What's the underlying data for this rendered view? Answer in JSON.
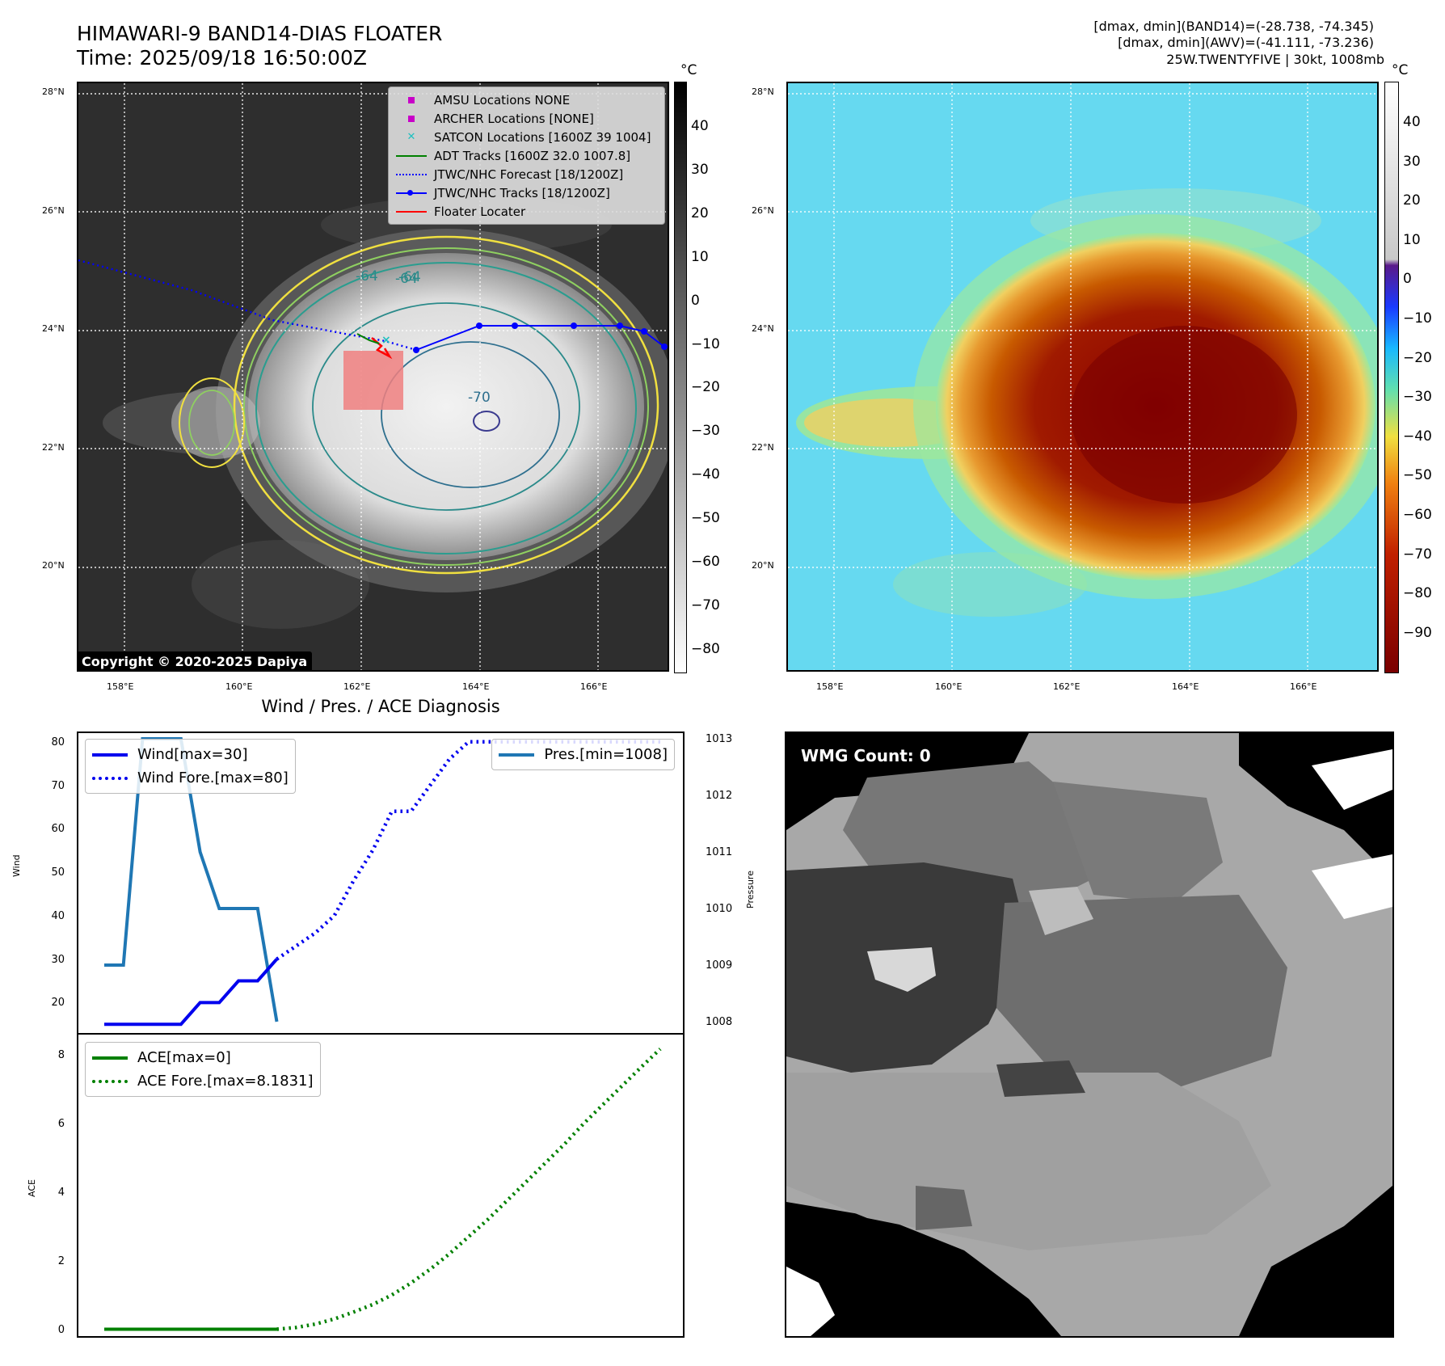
{
  "header": {
    "title_line1": "HIMAWARI-9 BAND14-DIAS FLOATER",
    "title_line2": "Time: 2025/09/18 16:50:00Z",
    "info_line1": "[dmax, dmin](BAND14)=(-28.738, -74.345)",
    "info_line2": "[dmax, dmin](AWV)=(-41.111, -73.236)",
    "info_line3": "25W.TWENTYFIVE | 30kt, 1008mb"
  },
  "map": {
    "lat_labels": [
      "28°N",
      "26°N",
      "24°N",
      "22°N",
      "20°N"
    ],
    "lon_labels": [
      "158°E",
      "160°E",
      "162°E",
      "164°E",
      "166°E"
    ],
    "copyright": "Copyright © 2020-2025 Dapiya",
    "contour_labels": [
      "-64",
      "-70",
      "-64",
      "-64"
    ],
    "legend": [
      {
        "label": "AMSU Locations NONE",
        "color": "#c800c8",
        "symbol": "square"
      },
      {
        "label": "ARCHER Locations [NONE]",
        "color": "#c800c8",
        "symbol": "square"
      },
      {
        "label": "SATCON Locations [1600Z 39 1004]",
        "color": "#20c0c0",
        "symbol": "x"
      },
      {
        "label": "ADT Tracks [1600Z 32.0 1007.8]",
        "color": "#008000",
        "symbol": "line"
      },
      {
        "label": "JTWC/NHC Forecast [18/1200Z]",
        "color": "#0000ff",
        "symbol": "dotted"
      },
      {
        "label": "JTWC/NHC Tracks [18/1200Z]",
        "color": "#0000ff",
        "symbol": "line-dot"
      },
      {
        "label": "Floater Locater",
        "color": "#ff0000",
        "symbol": "line"
      }
    ]
  },
  "colorbar_left": {
    "unit": "°C",
    "ticks": [
      "40",
      "30",
      "20",
      "10",
      "0",
      "−10",
      "−20",
      "−30",
      "−40",
      "−50",
      "−60",
      "−70",
      "−80"
    ]
  },
  "colorbar_right": {
    "unit": "°C",
    "ticks": [
      "40",
      "30",
      "20",
      "10",
      "0",
      "−10",
      "−20",
      "−30",
      "−40",
      "−50",
      "−60",
      "−70",
      "−80",
      "−90"
    ]
  },
  "wind_panel": {
    "title": "Wind / Pres. / ACE Diagnosis",
    "ylabel_left": "Wind",
    "ylabel_right": "Pressure",
    "wind_ticks": [
      "80",
      "70",
      "60",
      "50",
      "40",
      "30",
      "20"
    ],
    "pres_ticks": [
      "1013",
      "1012",
      "1011",
      "1010",
      "1009",
      "1008"
    ],
    "legend_wind": "Wind[max=30]",
    "legend_wind_fore": "Wind Fore.[max=80]",
    "legend_pres": "Pres.[min=1008]"
  },
  "ace_panel": {
    "ylabel": "ACE",
    "ticks": [
      "8",
      "6",
      "4",
      "2",
      "0"
    ],
    "legend_ace": "ACE[max=0]",
    "legend_ace_fore": "ACE Fore.[max=8.1831]"
  },
  "wmg_panel": {
    "label": "WMG Count: 0"
  },
  "colors": {
    "wind": "#0000ee",
    "pressure": "#1f77b4",
    "ace": "#008000",
    "track": "#0000ff",
    "floater_box": "#f08080"
  },
  "chart_data": [
    {
      "type": "line",
      "title": "Wind / Pres. / ACE Diagnosis",
      "ylabel": "Wind",
      "ylim": [
        13,
        82
      ],
      "series": [
        {
          "name": "Wind[max=30]",
          "style": "solid",
          "x": [
            0,
            1,
            2,
            3,
            4,
            5,
            6,
            7,
            8,
            9
          ],
          "values": [
            15,
            15,
            15,
            15,
            15,
            20,
            20,
            25,
            25,
            30
          ]
        },
        {
          "name": "Wind Fore.[max=80]",
          "style": "dotted",
          "x": [
            9,
            10,
            11,
            12,
            13,
            14,
            15,
            16,
            17,
            18,
            19,
            20,
            21,
            22,
            23,
            24,
            25,
            26,
            27,
            28,
            29
          ],
          "values": [
            30,
            33,
            36,
            40,
            48,
            55,
            64,
            64,
            70,
            76,
            80,
            80,
            80,
            80,
            80,
            80,
            80,
            80,
            80,
            80,
            80
          ]
        }
      ]
    },
    {
      "type": "line",
      "ylabel": "Pressure",
      "ylim": [
        1007.8,
        1013.1
      ],
      "series": [
        {
          "name": "Pres.[min=1008]",
          "style": "solid",
          "x": [
            0,
            1,
            2,
            3,
            4,
            5,
            6,
            7,
            8,
            9
          ],
          "values": [
            1009,
            1009,
            1013,
            1013,
            1013,
            1011,
            1010,
            1010,
            1010,
            1008
          ]
        }
      ]
    },
    {
      "type": "line",
      "ylabel": "ACE",
      "ylim": [
        -0.2,
        8.6
      ],
      "series": [
        {
          "name": "ACE[max=0]",
          "style": "solid",
          "x": [
            0,
            1,
            2,
            3,
            4,
            5,
            6,
            7,
            8,
            9
          ],
          "values": [
            0,
            0,
            0,
            0,
            0,
            0,
            0,
            0,
            0,
            0
          ]
        },
        {
          "name": "ACE Fore.[max=8.1831]",
          "style": "dotted",
          "x": [
            9,
            10,
            11,
            12,
            13,
            14,
            15,
            16,
            17,
            18,
            19,
            20,
            21,
            22,
            23,
            24,
            25,
            26,
            27,
            28,
            29
          ],
          "values": [
            0,
            0.05,
            0.15,
            0.3,
            0.5,
            0.72,
            1.0,
            1.35,
            1.75,
            2.2,
            2.7,
            3.2,
            3.75,
            4.3,
            4.85,
            5.4,
            6.0,
            6.55,
            7.1,
            7.65,
            8.1831
          ]
        }
      ]
    }
  ]
}
